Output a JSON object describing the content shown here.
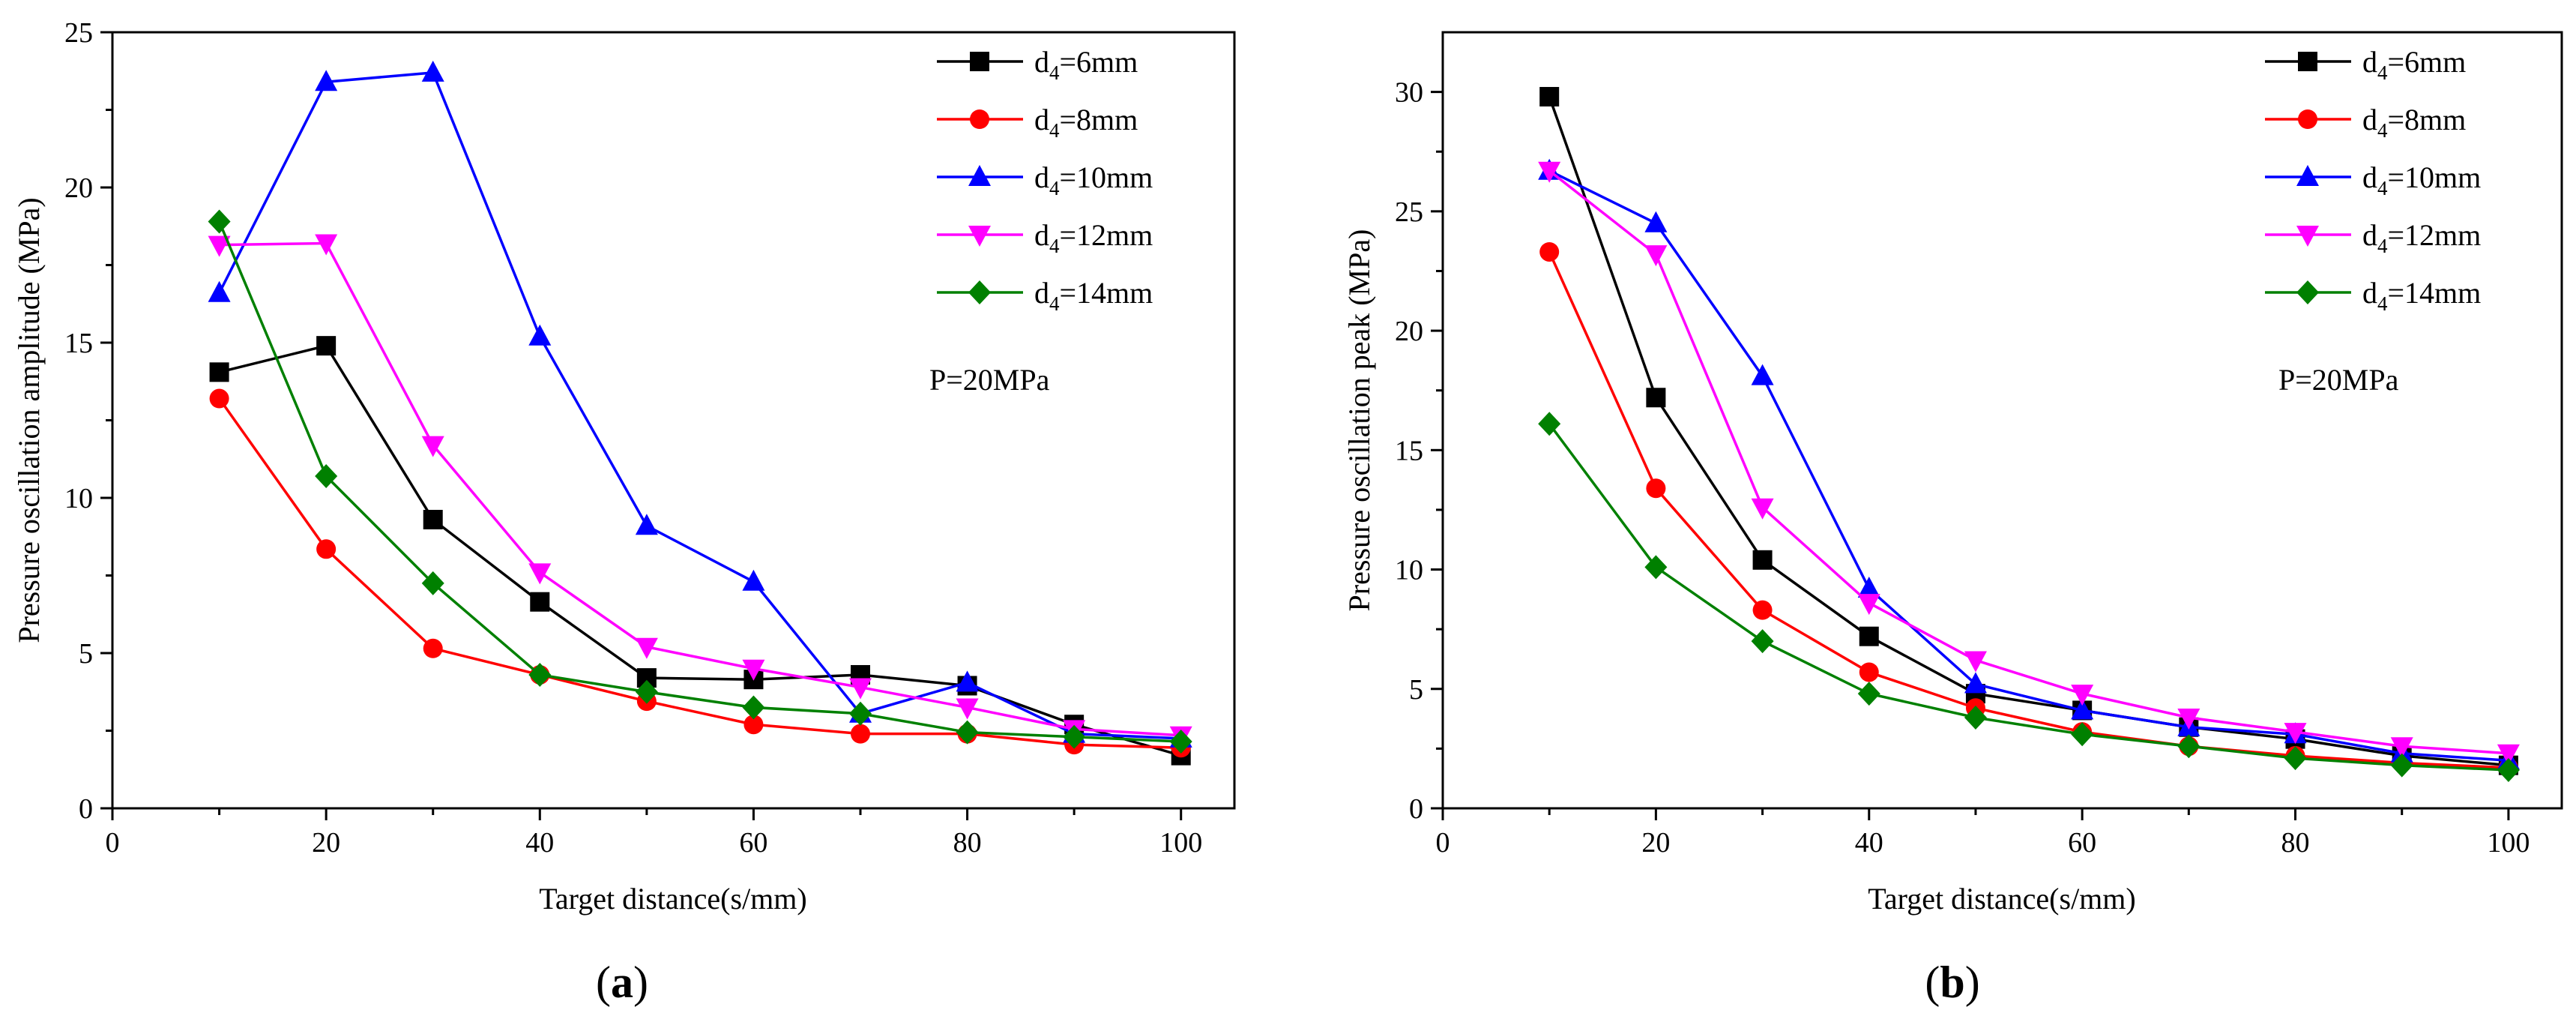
{
  "chart_data": [
    {
      "type": "line",
      "panel_label": {
        "open": "(",
        "letter": "a",
        "close": ")"
      },
      "annotation": "P=20MPa",
      "xlabel": "Target distance(s/mm)",
      "ylabel": "Pressure  oscillation amplitude  (MPa)",
      "xlim": [
        0,
        105
      ],
      "ylim": [
        0,
        25
      ],
      "xticks": [
        0,
        20,
        40,
        60,
        80,
        100
      ],
      "yticks": [
        0,
        5,
        10,
        15,
        20,
        25
      ],
      "x": [
        10,
        20,
        30,
        40,
        50,
        60,
        70,
        80,
        90,
        100
      ],
      "series": [
        {
          "name_main": "d",
          "name_sub": "4",
          "name_rest": "=6mm",
          "color": "#000000",
          "marker": "square",
          "values": [
            14.05,
            14.9,
            9.3,
            6.65,
            4.2,
            4.15,
            4.3,
            3.95,
            2.7,
            1.7
          ]
        },
        {
          "name_main": "d",
          "name_sub": "4",
          "name_rest": "=8mm",
          "color": "#ff0000",
          "marker": "circle",
          "values": [
            13.2,
            8.35,
            5.15,
            4.3,
            3.45,
            2.7,
            2.4,
            2.4,
            2.05,
            1.95
          ]
        },
        {
          "name_main": "d",
          "name_sub": "4",
          "name_rest": "=10mm",
          "color": "#0000ff",
          "marker": "triangle-up",
          "values": [
            16.6,
            23.4,
            23.7,
            15.2,
            9.1,
            7.3,
            3.05,
            4.05,
            2.4,
            2.25
          ]
        },
        {
          "name_main": "d",
          "name_sub": "4",
          "name_rest": "=12mm",
          "color": "#ff00ff",
          "marker": "triangle-down",
          "values": [
            18.15,
            18.2,
            11.7,
            7.6,
            5.2,
            4.5,
            3.9,
            3.25,
            2.55,
            2.35
          ]
        },
        {
          "name_main": "d",
          "name_sub": "4",
          "name_rest": "=14mm",
          "color": "#008000",
          "marker": "diamond",
          "values": [
            18.9,
            10.7,
            7.25,
            4.3,
            3.75,
            3.25,
            3.05,
            2.45,
            2.3,
            2.15
          ]
        }
      ]
    },
    {
      "type": "line",
      "panel_label": {
        "open": "(",
        "letter": "b",
        "close": ")"
      },
      "annotation": "P=20MPa",
      "xlabel": "Target distance(s/mm)",
      "ylabel": "Pressure  oscillation peak  (MPa)",
      "xlim": [
        0,
        105
      ],
      "ylim": [
        0,
        32.5
      ],
      "xticks": [
        0,
        20,
        40,
        60,
        80,
        100
      ],
      "yticks": [
        0,
        5,
        10,
        15,
        20,
        25,
        30
      ],
      "x": [
        10,
        20,
        30,
        40,
        50,
        60,
        70,
        80,
        90,
        100
      ],
      "series": [
        {
          "name_main": "d",
          "name_sub": "4",
          "name_rest": "=6mm",
          "color": "#000000",
          "marker": "square",
          "values": [
            29.8,
            17.2,
            10.4,
            7.2,
            4.8,
            4.1,
            3.4,
            2.9,
            2.2,
            1.8
          ]
        },
        {
          "name_main": "d",
          "name_sub": "4",
          "name_rest": "=8mm",
          "color": "#ff0000",
          "marker": "circle",
          "values": [
            23.3,
            13.4,
            8.3,
            5.7,
            4.2,
            3.2,
            2.6,
            2.2,
            1.9,
            1.7
          ]
        },
        {
          "name_main": "d",
          "name_sub": "4",
          "name_rest": "=10mm",
          "color": "#0000ff",
          "marker": "triangle-up",
          "values": [
            26.7,
            24.5,
            18.1,
            9.2,
            5.2,
            4.1,
            3.4,
            3.1,
            2.3,
            2.0
          ]
        },
        {
          "name_main": "d",
          "name_sub": "4",
          "name_rest": "=12mm",
          "color": "#ff00ff",
          "marker": "triangle-down",
          "values": [
            26.7,
            23.2,
            12.6,
            8.6,
            6.2,
            4.8,
            3.8,
            3.2,
            2.6,
            2.3
          ]
        },
        {
          "name_main": "d",
          "name_sub": "4",
          "name_rest": "=14mm",
          "color": "#008000",
          "marker": "diamond",
          "values": [
            16.1,
            10.1,
            7.0,
            4.8,
            3.8,
            3.1,
            2.6,
            2.1,
            1.8,
            1.6
          ]
        }
      ]
    }
  ]
}
